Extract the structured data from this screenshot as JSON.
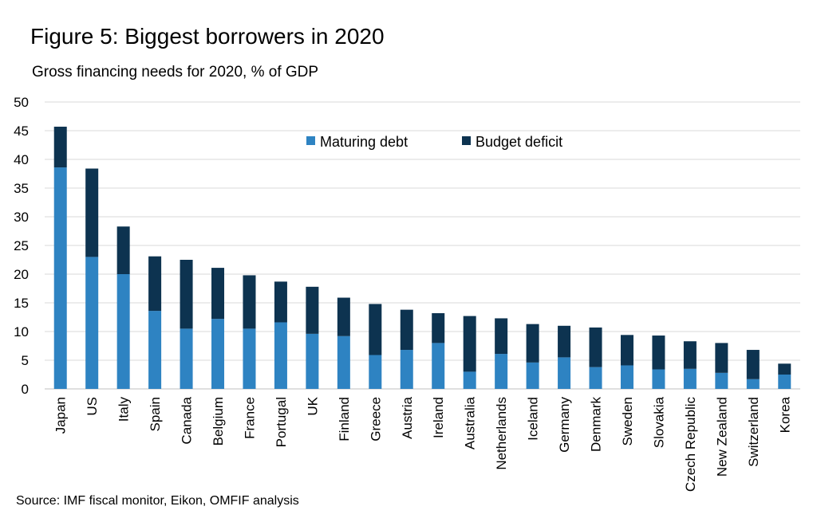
{
  "title": "Figure 5: Biggest borrowers in 2020",
  "subtitle": "Gross financing needs for 2020, % of GDP",
  "source": "Source: IMF fiscal monitor, Eikon, OMFIF analysis",
  "colors": {
    "maturing": "#2E83C2",
    "deficit": "#0D3350",
    "grid": "#D9D9D9"
  },
  "chart_data": {
    "type": "bar",
    "stacked": true,
    "title": "Figure 5: Biggest borrowers in 2020",
    "ylabel": "",
    "xlabel": "",
    "ylim": [
      0,
      50
    ],
    "yticks": [
      0,
      5,
      10,
      15,
      20,
      25,
      30,
      35,
      40,
      45,
      50
    ],
    "grid": true,
    "legend": "top-center",
    "categories": [
      "Japan",
      "US",
      "Italy",
      "Spain",
      "Canada",
      "Belgium",
      "France",
      "Portugal",
      "UK",
      "Finland",
      "Greece",
      "Austria",
      "Ireland",
      "Australia",
      "Netherlands",
      "Iceland",
      "Germany",
      "Denmark",
      "Sweden",
      "Slovakia",
      "Czech Republic",
      "New Zealand",
      "Switzerland",
      "Korea"
    ],
    "series": [
      {
        "name": "Maturing debt",
        "values": [
          38.6,
          23.0,
          20.0,
          13.6,
          10.5,
          12.2,
          10.5,
          11.6,
          9.6,
          9.2,
          5.9,
          6.8,
          8.0,
          3.0,
          6.1,
          4.6,
          5.5,
          3.8,
          4.1,
          3.4,
          3.5,
          2.8,
          1.7,
          2.5
        ]
      },
      {
        "name": "Budget deficit",
        "values": [
          7.1,
          15.4,
          8.3,
          9.5,
          12.0,
          8.9,
          9.3,
          7.1,
          8.2,
          6.7,
          8.9,
          7.0,
          5.2,
          9.7,
          6.2,
          6.7,
          5.5,
          6.9,
          5.3,
          5.9,
          4.8,
          5.2,
          5.1,
          1.9
        ]
      }
    ]
  }
}
